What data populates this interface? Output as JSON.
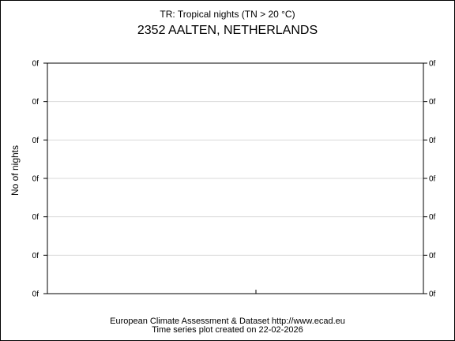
{
  "chart_data": {
    "type": "line",
    "title": "TR: Tropical nights (TN > 20 °C)",
    "subtitle": "2352 AALTEN, NETHERLANDS",
    "ylabel": "No of nights",
    "xlabel": "",
    "yticks_left": [
      "0f",
      "0f",
      "0f",
      "0f",
      "0f",
      "0f",
      "0f"
    ],
    "yticks_right": [
      "0f",
      "0f",
      "0f",
      "0f",
      "0f",
      "0f",
      "0f"
    ],
    "grid": true,
    "series": []
  },
  "footer": {
    "line1": "European Climate Assessment & Dataset  http://www.ecad.eu",
    "line2": "Time series plot created on 22-02-2026"
  },
  "colors": {
    "gridline": "#d9d9d9",
    "axis": "#000000"
  }
}
